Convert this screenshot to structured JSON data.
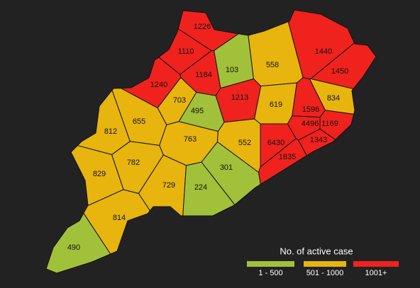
{
  "map": {
    "regions": [
      {
        "value": 1226,
        "color": "#f0221e"
      },
      {
        "value": 1110,
        "color": "#f0221e"
      },
      {
        "value": 103,
        "color": "#a2c13a"
      },
      {
        "value": 558,
        "color": "#e8b40e"
      },
      {
        "value": 1440,
        "color": "#f0221e"
      },
      {
        "value": 1184,
        "color": "#f0221e"
      },
      {
        "value": 1450,
        "color": "#f0221e"
      },
      {
        "value": 1240,
        "color": "#f0221e"
      },
      {
        "value": 1213,
        "color": "#f0221e"
      },
      {
        "value": 619,
        "color": "#e8b40e"
      },
      {
        "value": 834,
        "color": "#e8b40e"
      },
      {
        "value": 703,
        "color": "#e8b40e"
      },
      {
        "value": 495,
        "color": "#a2c13a"
      },
      {
        "value": 655,
        "color": "#e8b40e"
      },
      {
        "value": 1596,
        "color": "#f0221e"
      },
      {
        "value": 812,
        "color": "#e8b40e"
      },
      {
        "value": 4496,
        "color": "#f0221e"
      },
      {
        "value": 1169,
        "color": "#f0221e"
      },
      {
        "value": 763,
        "color": "#e8b40e"
      },
      {
        "value": 552,
        "color": "#e8b40e"
      },
      {
        "value": 6430,
        "color": "#f0221e"
      },
      {
        "value": 1343,
        "color": "#f0221e"
      },
      {
        "value": 782,
        "color": "#e8b40e"
      },
      {
        "value": 301,
        "color": "#a2c13a"
      },
      {
        "value": 1835,
        "color": "#f0221e"
      },
      {
        "value": 829,
        "color": "#e8b40e"
      },
      {
        "value": 729,
        "color": "#e8b40e"
      },
      {
        "value": 224,
        "color": "#a2c13a"
      },
      {
        "value": 814,
        "color": "#e8b40e"
      },
      {
        "value": 490,
        "color": "#a2c13a"
      }
    ],
    "legend": {
      "title": "No. of active case",
      "items": [
        {
          "label": "1 - 500",
          "color": "#a2c13a"
        },
        {
          "label": "501 - 1000",
          "color": "#e8b40e"
        },
        {
          "label": "1001+",
          "color": "#f0221e"
        }
      ]
    }
  }
}
